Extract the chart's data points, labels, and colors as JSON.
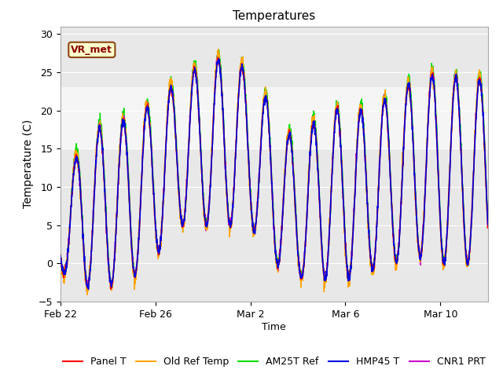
{
  "title": "Temperatures",
  "xlabel": "Time",
  "ylabel": "Temperature (C)",
  "ylim": [
    -5,
    31
  ],
  "yticks": [
    -5,
    0,
    5,
    10,
    15,
    20,
    25,
    30
  ],
  "shaded_band": [
    15,
    23
  ],
  "annotation_text": "VR_met",
  "series_colors": {
    "Panel T": "#ff0000",
    "Old Ref Temp": "#ffa500",
    "AM25T Ref": "#00dd00",
    "HMP45 T": "#0000dd",
    "CNR1 PRT": "#cc00cc"
  },
  "legend_labels": [
    "Panel T",
    "Old Ref Temp",
    "AM25T Ref",
    "HMP45 T",
    "CNR1 PRT"
  ],
  "xtick_labels": [
    "Feb 22",
    "Feb 26",
    "Mar 2",
    "Mar 6",
    "Mar 10"
  ],
  "plot_bg_color": "#e8e8e8",
  "white_band_color": "#f5f5f5"
}
